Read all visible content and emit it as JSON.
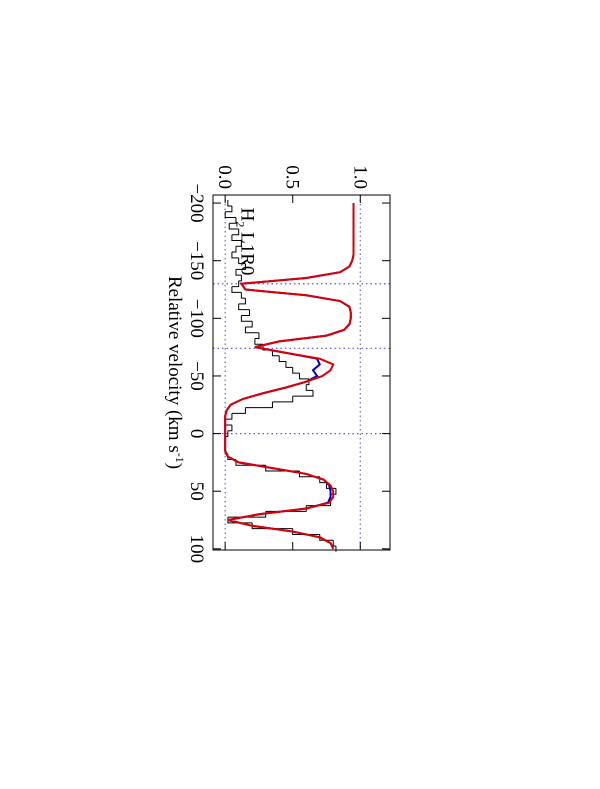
{
  "chart_data": {
    "type": "line",
    "xlabel": {
      "text": "Relative velocity (km s",
      "sup": "-1",
      "close": ")"
    },
    "annotation": {
      "text": "H",
      "sub": "2",
      "rest": " L1R0"
    },
    "xlim": [
      -207,
      101
    ],
    "ylim": [
      -0.09,
      1.22
    ],
    "xticks": [
      {
        "value": -200,
        "label": "−200"
      },
      {
        "value": -150,
        "label": "−150"
      },
      {
        "value": -100,
        "label": "−100"
      },
      {
        "value": -50,
        "label": "−50"
      },
      0,
      50,
      100
    ],
    "yticks": [
      {
        "value": 0,
        "label": "0.0"
      },
      0.5,
      {
        "value": 1,
        "label": "1.0"
      }
    ],
    "marker_lines": [
      -130,
      -74,
      0
    ],
    "reference_levels": [
      0,
      1
    ],
    "x": [
      -200,
      -195,
      -190,
      -185,
      -180,
      -175,
      -170,
      -165,
      -160,
      -155,
      -150,
      -145,
      -140,
      -135,
      -130,
      -125,
      -120,
      -115,
      -110,
      -105,
      -100,
      -95,
      -90,
      -85,
      -80,
      -75,
      -70,
      -65,
      -60,
      -55,
      -50,
      -45,
      -40,
      -35,
      -30,
      -25,
      -20,
      -15,
      -10,
      -5,
      0,
      5,
      10,
      15,
      20,
      25,
      30,
      35,
      40,
      45,
      50,
      55,
      60,
      65,
      70,
      75,
      80,
      85,
      90,
      95,
      100
    ],
    "series": [
      {
        "style": "histogram",
        "color": "#000000",
        "values": [
          0.02,
          0.05,
          0.0,
          0.08,
          0.03,
          0.1,
          0.05,
          0.12,
          0.08,
          0.05,
          0.1,
          0.15,
          0.08,
          0.12,
          0.1,
          0.05,
          0.12,
          0.15,
          0.1,
          0.18,
          0.12,
          0.2,
          0.15,
          0.25,
          0.22,
          0.28,
          0.35,
          0.4,
          0.45,
          0.5,
          0.55,
          0.62,
          0.6,
          0.65,
          0.5,
          0.35,
          0.15,
          0.05,
          0,
          0.05,
          0.02,
          0,
          0,
          0,
          0.02,
          0.08,
          0.3,
          0.55,
          0.7,
          0.75,
          0.82,
          0.78,
          0.78,
          0.6,
          0.3,
          0.02,
          0.2,
          0.5,
          0.7,
          0.8,
          0.82
        ]
      },
      {
        "style": "line",
        "color": "#0000cc",
        "values": [
          0.95,
          0.95,
          0.95,
          0.95,
          0.95,
          0.95,
          0.95,
          0.95,
          0.95,
          0.95,
          0.94,
          0.92,
          0.85,
          0.6,
          0.12,
          0.15,
          0.6,
          0.85,
          0.92,
          0.93,
          0.93,
          0.92,
          0.88,
          0.75,
          0.4,
          0.22,
          0.45,
          0.68,
          0.7,
          0.65,
          0.68,
          0.6,
          0.45,
          0.28,
          0.13,
          0.04,
          0.01,
          0,
          0,
          0,
          0,
          0,
          0,
          0,
          0.02,
          0.1,
          0.35,
          0.6,
          0.73,
          0.77,
          0.78,
          0.78,
          0.76,
          0.6,
          0.25,
          0.02,
          0.2,
          0.5,
          0.7,
          0.78,
          0.8
        ]
      },
      {
        "style": "line",
        "color": "#dd0000",
        "values": [
          0.95,
          0.95,
          0.95,
          0.95,
          0.95,
          0.95,
          0.95,
          0.95,
          0.95,
          0.95,
          0.94,
          0.92,
          0.85,
          0.6,
          0.12,
          0.15,
          0.6,
          0.85,
          0.92,
          0.93,
          0.93,
          0.92,
          0.88,
          0.75,
          0.4,
          0.22,
          0.45,
          0.7,
          0.8,
          0.78,
          0.72,
          0.6,
          0.45,
          0.28,
          0.13,
          0.04,
          0.01,
          0,
          0,
          0,
          0,
          0,
          0,
          0,
          0.02,
          0.1,
          0.35,
          0.6,
          0.73,
          0.78,
          0.8,
          0.8,
          0.77,
          0.6,
          0.25,
          0.02,
          0.2,
          0.5,
          0.7,
          0.78,
          0.8
        ]
      }
    ]
  }
}
